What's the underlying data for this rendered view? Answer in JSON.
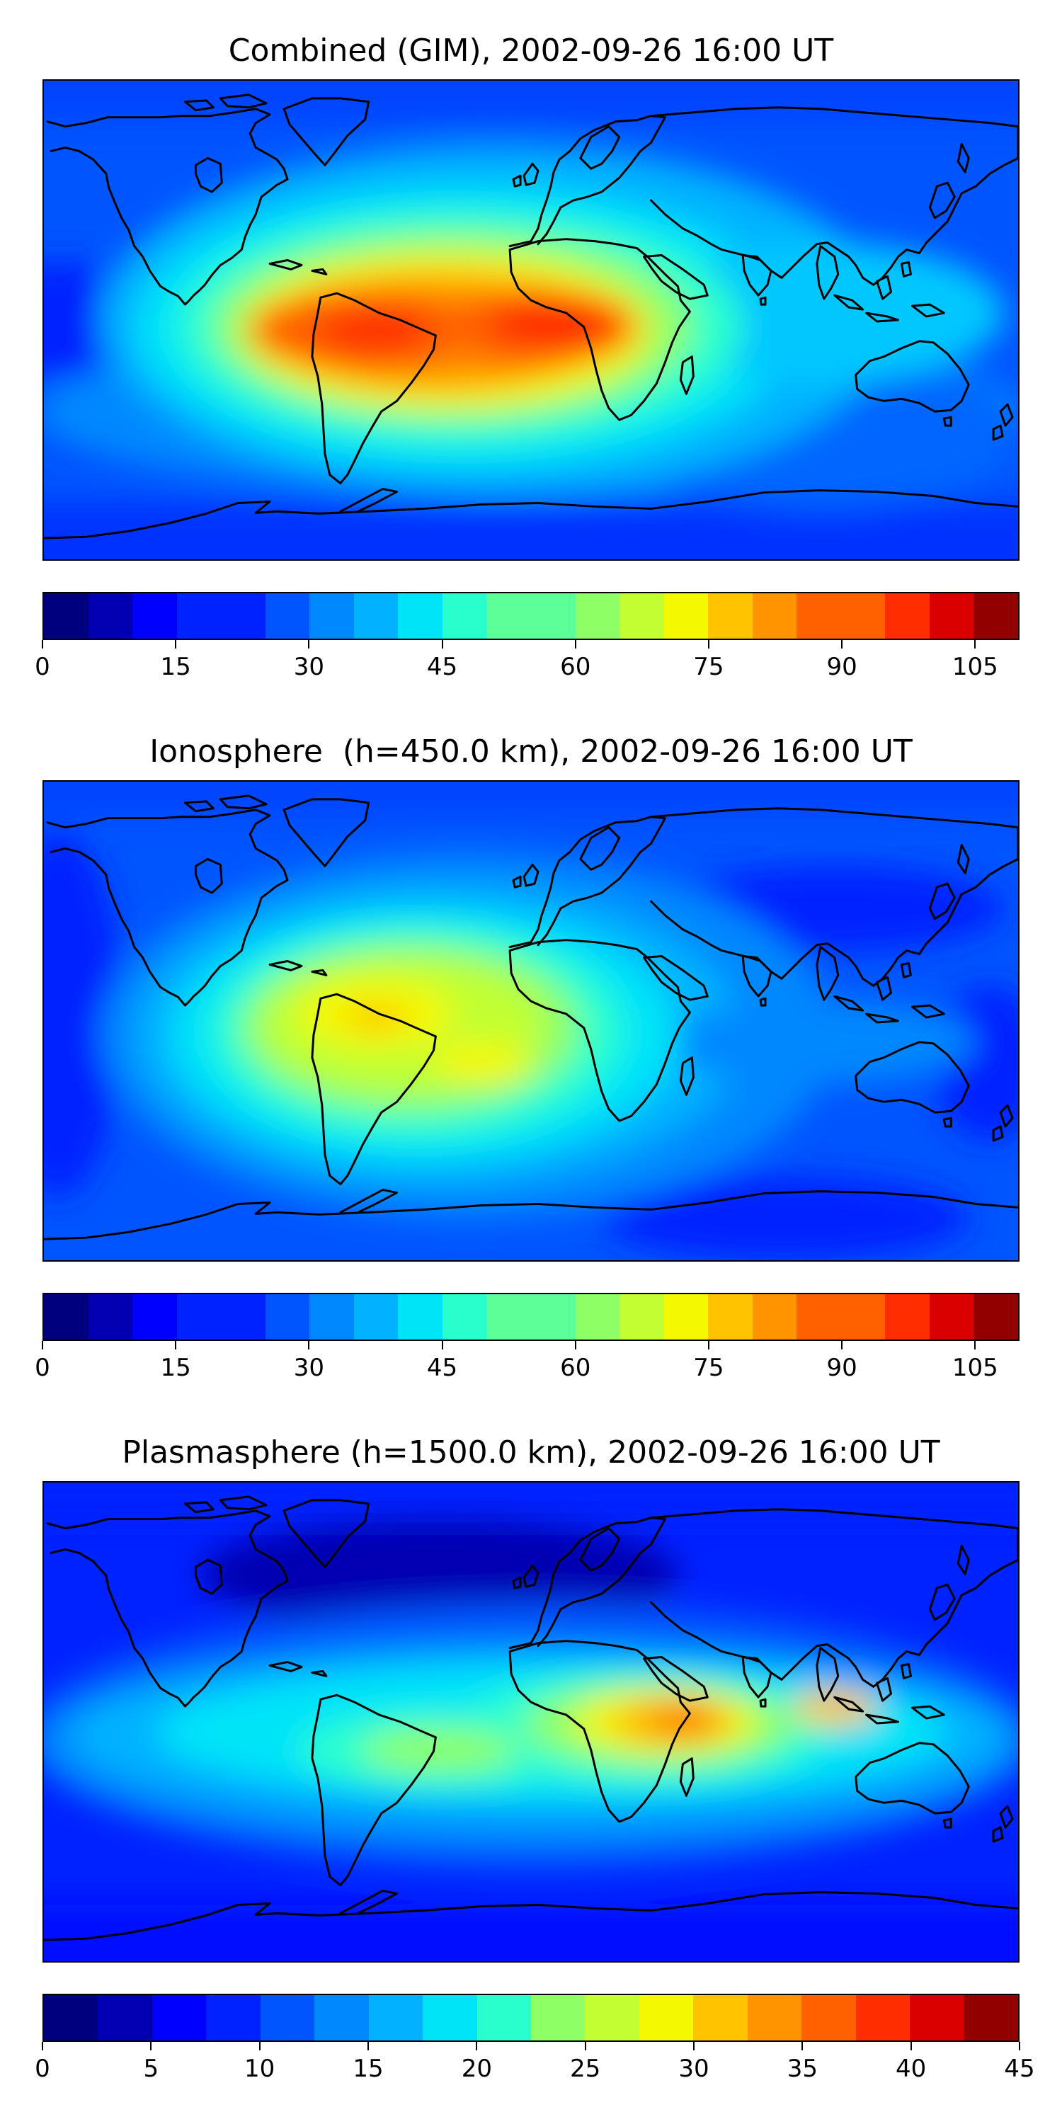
{
  "figure": {
    "colormap": [
      "#00007f",
      "#0000b2",
      "#0000ff",
      "#0022ff",
      "#0055ff",
      "#0088ff",
      "#00b2ff",
      "#00e4f8",
      "#29ffcd",
      "#5dff99",
      "#8fff66",
      "#c1ff33",
      "#f4f800",
      "#ffc300",
      "#ff9400",
      "#ff6000",
      "#ff2d00",
      "#db0000",
      "#930000"
    ],
    "coast_color": "#000000"
  },
  "panels": [
    {
      "title": "Combined (GIM), 2002-09-26 16:00 UT",
      "colorbar": {
        "min": 0,
        "max": 110,
        "levels": 22,
        "ticks": [
          "0",
          "15",
          "30",
          "45",
          "60",
          "75",
          "90",
          "105"
        ]
      },
      "max_region": "South America / Atlantic / Africa equatorial band (~100 TECU)"
    },
    {
      "title": "Ionosphere  (h=450.0 km), 2002-09-26 16:00 UT",
      "colorbar": {
        "min": 0,
        "max": 110,
        "levels": 22,
        "ticks": [
          "0",
          "15",
          "30",
          "45",
          "60",
          "75",
          "90",
          "105"
        ]
      },
      "max_region": "Northern South America / tropical Atlantic (~75 TECU)"
    },
    {
      "title": "Plasmasphere (h=1500.0 km), 2002-09-26 16:00 UT",
      "colorbar": {
        "min": 0,
        "max": 45,
        "levels": 18,
        "ticks": [
          "0",
          "5",
          "10",
          "15",
          "20",
          "25",
          "30",
          "35",
          "40",
          "45"
        ]
      },
      "max_region": "East Africa / Horn of Africa (~35 TECU)"
    }
  ]
}
